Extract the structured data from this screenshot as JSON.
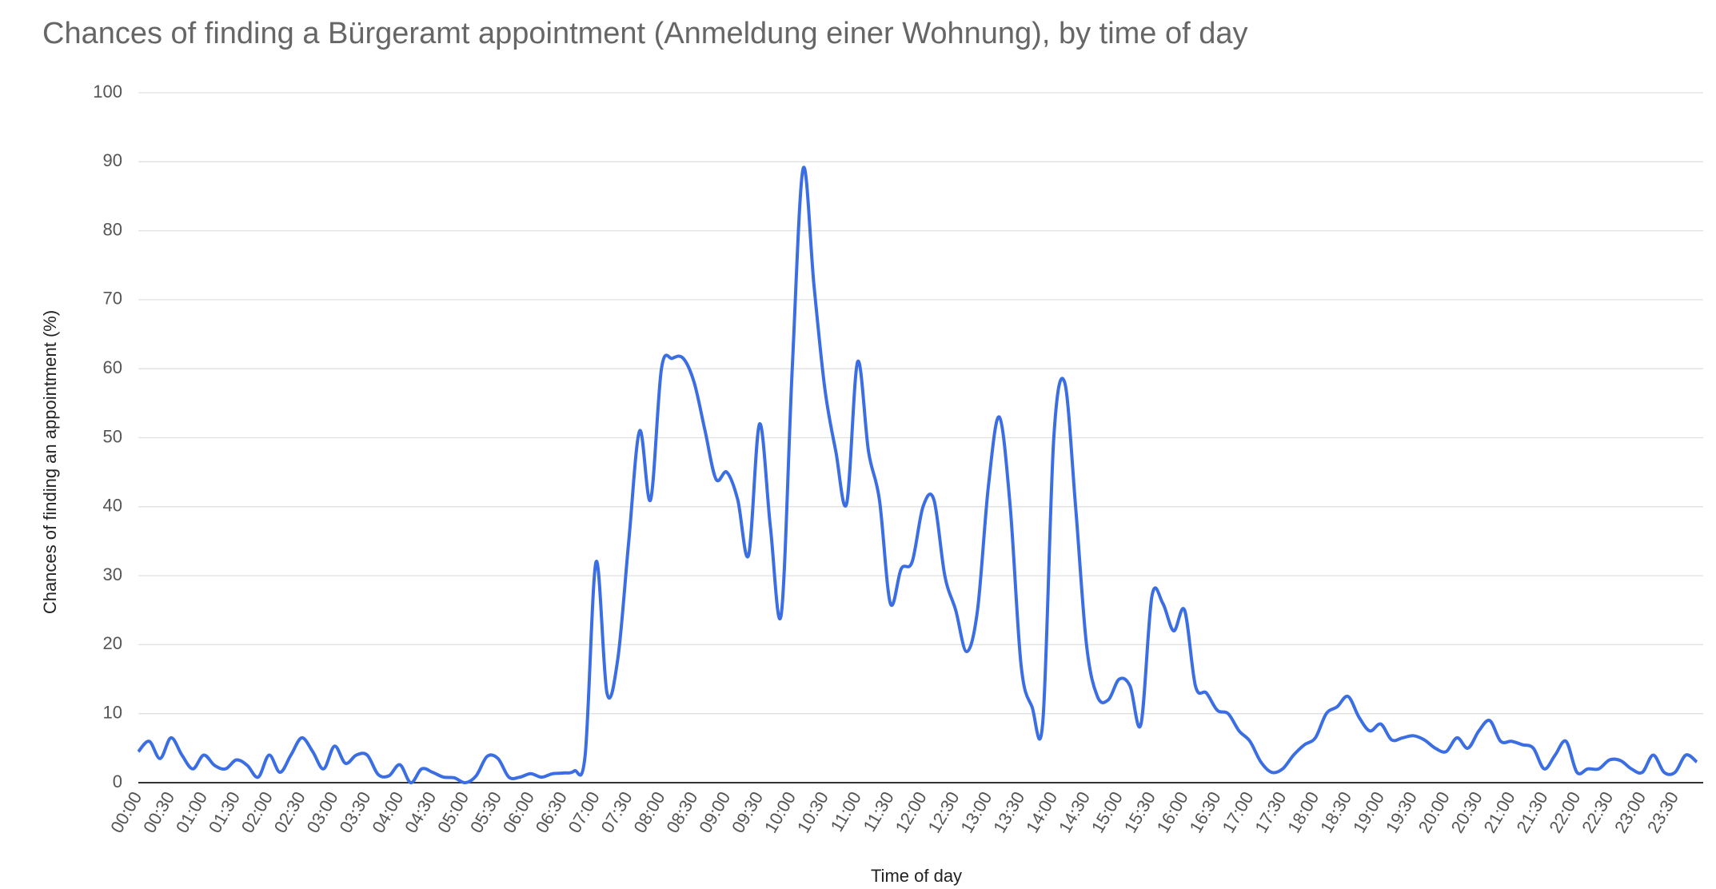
{
  "chart_data": {
    "type": "line",
    "title": "Chances of finding a Bürgeramt appointment (Anmeldung einer Wohnung), by time of day",
    "x_label": "Time of day",
    "y_label": "Chances of finding an appointment (%)",
    "categories": [
      "00:00",
      null,
      null,
      "00:30",
      null,
      null,
      "01:00",
      null,
      null,
      "01:30",
      null,
      null,
      "02:00",
      null,
      null,
      "02:30",
      null,
      null,
      "03:00",
      null,
      null,
      "03:30",
      null,
      null,
      "04:00",
      null,
      null,
      "04:30",
      null,
      null,
      "05:00",
      null,
      null,
      "05:30",
      null,
      null,
      "06:00",
      null,
      null,
      "06:30",
      null,
      null,
      "07:00",
      null,
      null,
      "07:30",
      null,
      null,
      "08:00",
      null,
      null,
      "08:30",
      null,
      null,
      "09:00",
      null,
      null,
      "09:30",
      null,
      null,
      "10:00",
      null,
      null,
      "10:30",
      null,
      null,
      "11:00",
      null,
      null,
      "11:30",
      null,
      null,
      "12:00",
      null,
      null,
      "12:30",
      null,
      null,
      "13:00",
      null,
      null,
      "13:30",
      null,
      null,
      "14:00",
      null,
      null,
      "14:30",
      null,
      null,
      "15:00",
      null,
      null,
      "15:30",
      null,
      null,
      "16:00",
      null,
      null,
      "16:30",
      null,
      null,
      "17:00",
      null,
      null,
      "17:30",
      null,
      null,
      "18:00",
      null,
      null,
      "18:30",
      null,
      null,
      "19:00",
      null,
      null,
      "19:30",
      null,
      null,
      "20:00",
      null,
      null,
      "20:30",
      null,
      null,
      "21:00",
      null,
      null,
      "21:30",
      null,
      null,
      "22:00",
      null,
      null,
      "22:30",
      null,
      null,
      "23:00",
      null,
      null,
      "23:30",
      null,
      null
    ],
    "series": [
      {
        "name": "Chances of finding an appointment (%)",
        "color": "#3b6ee3",
        "values": [
          4.5,
          6,
          3.5,
          6.5,
          4,
          2,
          4,
          2.5,
          2,
          3.3,
          2.5,
          0.8,
          4,
          1.5,
          4,
          6.5,
          4.5,
          2,
          5.3,
          2.8,
          4,
          4,
          1.2,
          1,
          2.6,
          0,
          2,
          1.5,
          0.8,
          0.7,
          0,
          1,
          3.8,
          3.5,
          0.8,
          0.8,
          1.3,
          0.8,
          1.3,
          1.4,
          1.7,
          4,
          32,
          13,
          18,
          35,
          51,
          41,
          60,
          61.5,
          61.5,
          58,
          51,
          44,
          45,
          41,
          33,
          52,
          37,
          24.5,
          60,
          89,
          72,
          57,
          48,
          40.5,
          61,
          48,
          41,
          26,
          31,
          32,
          40,
          41,
          30,
          25,
          19,
          25,
          43,
          53,
          40,
          17,
          11,
          9,
          50,
          58,
          40,
          20,
          12.5,
          12,
          15,
          14,
          8.5,
          27,
          26,
          22,
          25,
          14,
          13,
          10.5,
          10,
          7.5,
          6,
          3,
          1.5,
          2,
          4,
          5.5,
          6.5,
          10,
          11,
          12.5,
          9.5,
          7.5,
          8.5,
          6.2,
          6.5,
          6.8,
          6.2,
          5,
          4.5,
          6.5,
          5,
          7.5,
          9,
          6,
          6,
          5.5,
          5,
          2,
          4,
          6,
          1.5,
          2,
          2,
          3.3,
          3.2,
          2,
          1.5,
          4,
          1.5,
          1.5,
          4,
          3
        ]
      }
    ],
    "ylim": [
      0,
      100
    ],
    "yticks": [
      0,
      10,
      20,
      30,
      40,
      50,
      60,
      70,
      80,
      90,
      100
    ],
    "grid": true,
    "smooth": true
  }
}
